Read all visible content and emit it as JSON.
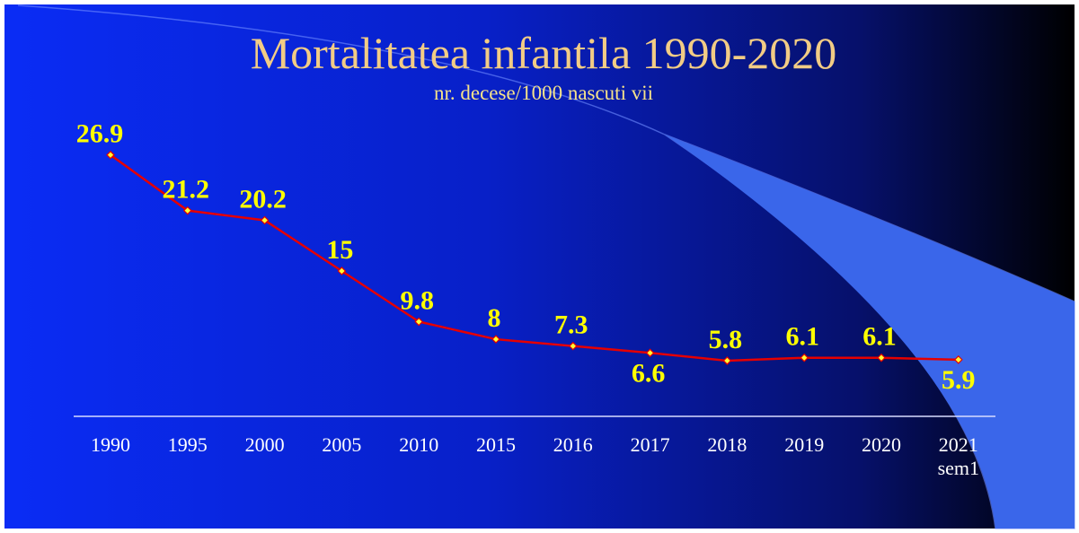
{
  "chart_data": {
    "type": "line",
    "title": "Mortalitatea infantila 1990-2020",
    "subtitle": "nr. decese/1000 nascuti vii",
    "categories": [
      "1990",
      "1995",
      "2000",
      "2005",
      "2010",
      "2015",
      "2016",
      "2017",
      "2018",
      "2019",
      "2020",
      "2021 sem1"
    ],
    "series": [
      {
        "name": "Mortalitatea infantila",
        "color": "#e60000",
        "values": [
          26.9,
          21.2,
          20.2,
          15,
          9.8,
          8,
          7.3,
          6.6,
          5.8,
          6.1,
          6.1,
          5.9
        ]
      }
    ],
    "ylim": [
      0,
      30
    ]
  }
}
